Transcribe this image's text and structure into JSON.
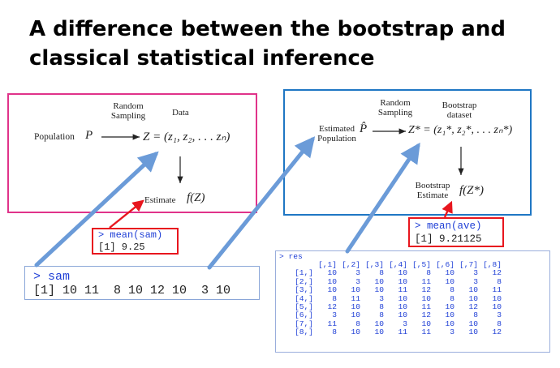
{
  "title": "A difference between the bootstrap and classical statistical inference",
  "classical": {
    "random_sampling": "Random\nSampling",
    "data": "Data",
    "population": "Population",
    "population_symbol": "P",
    "z_equation": "Z = (z₁, z₂, . . . zₙ)",
    "estimate": "Estimate",
    "estimate_formula": "f(Z)"
  },
  "bootstrap": {
    "random_sampling": "Random\nSampling",
    "bootstrap_dataset": "Bootstrap\ndataset",
    "estimated_population": "Estimated\nPopulation",
    "phat_symbol": "P̂",
    "zstar_equation": "Z* = (z₁*, z₂*, . . . zₙ*)",
    "bootstrap_estimate": "Bootstrap\nEstimate",
    "estimate_formula": "f(Z*)"
  },
  "console_mean_sam": {
    "command": "> mean(sam)",
    "output": "[1] 9.25"
  },
  "console_mean_ave": {
    "command": "> mean(ave)",
    "output": "[1] 9.21125"
  },
  "console_sam": {
    "command": "> sam",
    "output": "[1] 10 11  8 10 12 10  3 10"
  },
  "console_res": {
    "command": "> res",
    "columns": [
      "[,1]",
      "[,2]",
      "[,3]",
      "[,4]",
      "[,5]",
      "[,6]",
      "[,7]",
      "[,8]"
    ],
    "rows": [
      {
        "label": "[1,]",
        "values": [
          "10",
          "3",
          "8",
          "10",
          "8",
          "10",
          "3",
          "12"
        ]
      },
      {
        "label": "[2,]",
        "values": [
          "10",
          "3",
          "10",
          "10",
          "11",
          "10",
          "3",
          "8"
        ]
      },
      {
        "label": "[3,]",
        "values": [
          "10",
          "10",
          "10",
          "11",
          "12",
          "8",
          "10",
          "11"
        ]
      },
      {
        "label": "[4,]",
        "values": [
          "8",
          "11",
          "3",
          "10",
          "10",
          "8",
          "10",
          "10"
        ]
      },
      {
        "label": "[5,]",
        "values": [
          "12",
          "10",
          "8",
          "10",
          "11",
          "10",
          "12",
          "10"
        ]
      },
      {
        "label": "[6,]",
        "values": [
          "3",
          "10",
          "8",
          "10",
          "12",
          "10",
          "8",
          "3"
        ]
      },
      {
        "label": "[7,]",
        "values": [
          "11",
          "8",
          "10",
          "3",
          "10",
          "10",
          "10",
          "8"
        ]
      },
      {
        "label": "[8,]",
        "values": [
          "8",
          "10",
          "10",
          "11",
          "11",
          "3",
          "10",
          "12"
        ]
      }
    ]
  }
}
